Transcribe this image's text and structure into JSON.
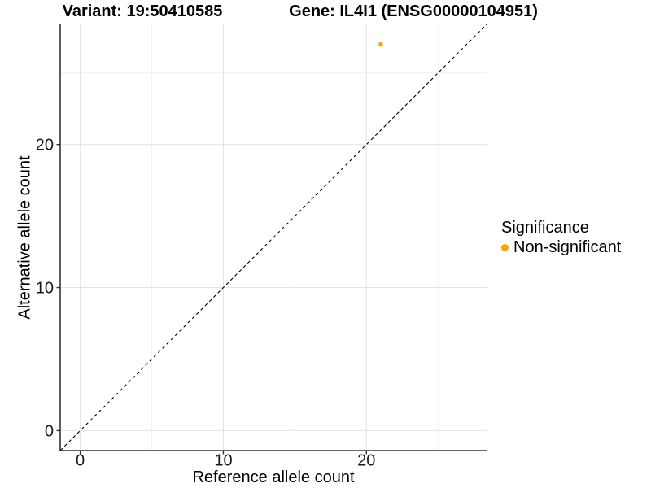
{
  "chart_data": {
    "type": "scatter",
    "titles": {
      "left": "Variant: 19:50410585",
      "right": "Gene: IL4I1 (ENSG00000104951)"
    },
    "xlabel": "Reference allele count",
    "ylabel": "Alternative allele count",
    "xlim": [
      -1.4,
      28.4
    ],
    "ylim": [
      -1.4,
      28.4
    ],
    "x_major_ticks": [
      0,
      10,
      20
    ],
    "y_major_ticks": [
      0,
      10,
      20
    ],
    "x_minor_gridlines": [
      5,
      15,
      25
    ],
    "y_minor_gridlines": [
      5,
      15,
      25
    ],
    "grid": "major+minor",
    "identity_line": {
      "style": "dashed",
      "color": "#000000",
      "from": -1.4,
      "to": 28.4
    },
    "series": [
      {
        "name": "Non-significant",
        "color": "#FFA500",
        "points": [
          {
            "x": 21,
            "y": 27
          }
        ]
      }
    ],
    "legend": {
      "title": "Significance",
      "position": "right",
      "items": [
        {
          "label": "Non-significant",
          "color": "#FFA500"
        }
      ]
    }
  }
}
